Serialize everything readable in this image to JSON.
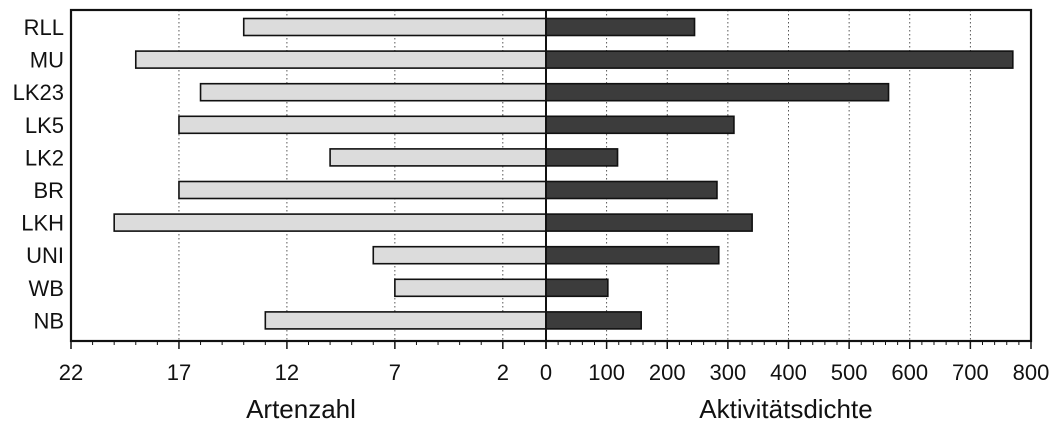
{
  "chart_data": {
    "type": "bar",
    "orientation": "horizontal",
    "categories": [
      "RLL",
      "MU",
      "LK23",
      "LK5",
      "LK2",
      "BR",
      "LKH",
      "UNI",
      "WB",
      "NB"
    ],
    "left_panel": {
      "xlabel": "Artenzahl",
      "xlim": [
        22,
        0
      ],
      "ticks": [
        22,
        17,
        12,
        7,
        2,
        0
      ],
      "values": [
        14,
        19,
        16,
        17,
        10,
        17,
        20,
        8,
        7,
        13
      ],
      "fill": "#dcdcdc"
    },
    "right_panel": {
      "xlabel": "Aktivitätsdichte",
      "xlim": [
        0,
        800
      ],
      "ticks": [
        0,
        100,
        200,
        300,
        400,
        500,
        600,
        700,
        800
      ],
      "values": [
        245,
        770,
        565,
        310,
        118,
        282,
        340,
        285,
        102,
        157
      ],
      "fill": "#3c3c3c"
    },
    "grid": true,
    "legend": "none"
  }
}
